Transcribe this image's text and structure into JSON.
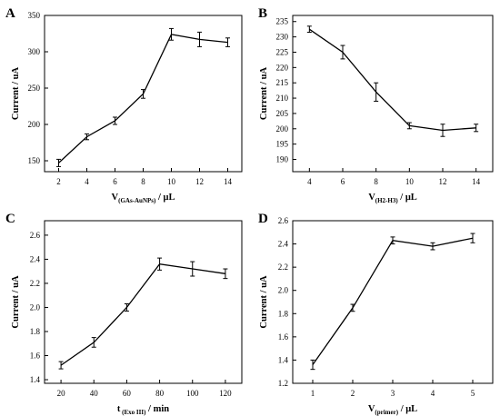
{
  "chart_data": [
    {
      "type": "line",
      "panel_label": "A",
      "x": [
        2,
        4,
        6,
        8,
        10,
        12,
        14
      ],
      "y": [
        147,
        183,
        205,
        242,
        324,
        317,
        313
      ],
      "error": [
        5,
        4,
        5,
        6,
        8,
        10,
        6
      ],
      "xlabel": {
        "main": "V",
        "sub": "(GAs-AuNPs)",
        "rest": " / μL"
      },
      "ylabel": "Current / uA",
      "xlim": [
        1,
        15
      ],
      "ylim": [
        135,
        350
      ],
      "xticks": [
        2,
        4,
        6,
        8,
        10,
        12,
        14
      ],
      "yticks": [
        150,
        200,
        250,
        300,
        350
      ],
      "ytick_labels": [
        "150",
        "200",
        "250",
        "300",
        "350"
      ]
    },
    {
      "type": "line",
      "panel_label": "B",
      "x": [
        4,
        6,
        8,
        10,
        12,
        14
      ],
      "y": [
        232.5,
        225,
        212,
        201,
        199.5,
        200.3
      ],
      "error": [
        1,
        2.2,
        3,
        1,
        2,
        1.2
      ],
      "xlabel": {
        "main": "V",
        "sub": "(H2-H3)",
        "rest": " / μL"
      },
      "ylabel": "Current / uA",
      "xlim": [
        3,
        15
      ],
      "ylim": [
        186,
        237
      ],
      "xticks": [
        4,
        6,
        8,
        10,
        12,
        14
      ],
      "yticks": [
        190,
        195,
        200,
        205,
        210,
        215,
        220,
        225,
        230,
        235
      ],
      "ytick_labels": [
        "190",
        "195",
        "200",
        "205",
        "210",
        "215",
        "220",
        "225",
        "230",
        "235"
      ]
    },
    {
      "type": "line",
      "panel_label": "C",
      "x": [
        20,
        40,
        60,
        80,
        100,
        120
      ],
      "y": [
        1.52,
        1.71,
        2.0,
        2.36,
        2.32,
        2.28
      ],
      "error": [
        0.03,
        0.04,
        0.03,
        0.05,
        0.06,
        0.04
      ],
      "xlabel": {
        "main": "t",
        "sub": " (Exo III)",
        "rest": " / min"
      },
      "ylabel": "Current / uA",
      "xlim": [
        10,
        130
      ],
      "ylim": [
        1.37,
        2.72
      ],
      "xticks": [
        20,
        40,
        60,
        80,
        100,
        120
      ],
      "yticks": [
        1.4,
        1.6,
        1.8,
        2.0,
        2.2,
        2.4,
        2.6
      ],
      "ytick_labels": [
        "1.4",
        "1.6",
        "1.8",
        "2.0",
        "2.2",
        "2.4",
        "2.6"
      ]
    },
    {
      "type": "line",
      "panel_label": "D",
      "x": [
        1,
        2,
        3,
        4,
        5
      ],
      "y": [
        1.36,
        1.85,
        2.43,
        2.38,
        2.45
      ],
      "error": [
        0.04,
        0.03,
        0.03,
        0.03,
        0.04
      ],
      "xlabel": {
        "main": "V",
        "sub": "(primer)",
        "rest": " / μL"
      },
      "ylabel": "Current / uA",
      "xlim": [
        0.5,
        5.5
      ],
      "ylim": [
        1.2,
        2.6
      ],
      "xticks": [
        1,
        2,
        3,
        4,
        5
      ],
      "yticks": [
        1.2,
        1.4,
        1.6,
        1.8,
        2.0,
        2.2,
        2.4,
        2.6
      ],
      "ytick_labels": [
        "1.2",
        "1.4",
        "1.6",
        "1.8",
        "2.0",
        "2.2",
        "2.4",
        "2.6"
      ]
    }
  ]
}
